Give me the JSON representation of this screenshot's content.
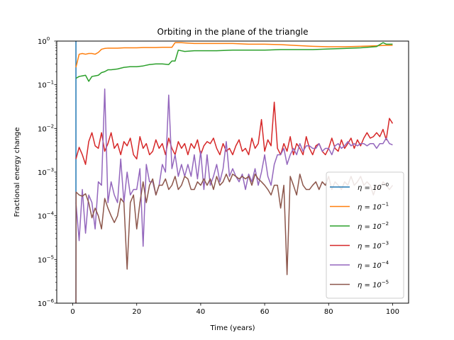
{
  "chart_data": {
    "type": "line",
    "title": "Orbiting in the plane of the triangle",
    "xlabel": "Time (years)",
    "ylabel": "Fractional energy change",
    "xlim": [
      -5,
      105
    ],
    "ylim": [
      1e-06,
      1
    ],
    "yscale": "log",
    "grid": false,
    "legend_position": "lower-right",
    "x_ticks": [
      0,
      20,
      40,
      60,
      80,
      100
    ],
    "x_tick_labels": [
      "0",
      "20",
      "40",
      "60",
      "80",
      "100"
    ],
    "y_ticks": [
      1e-06,
      1e-05,
      0.0001,
      0.001,
      0.01,
      0.1,
      1
    ],
    "y_tick_bases": [
      "10",
      "10",
      "10",
      "10",
      "10",
      "10",
      "10"
    ],
    "y_tick_exps": [
      "−6",
      "−5",
      "−4",
      "−3",
      "−2",
      "−1",
      "0"
    ],
    "series": [
      {
        "name": "η = 10^−0",
        "name_base": "η = 10",
        "name_exp": "−0",
        "color": "#1f77b4",
        "x": [
          1,
          1
        ],
        "y": [
          1e-06,
          1
        ]
      },
      {
        "name": "η = 10^−1",
        "name_base": "η = 10",
        "name_exp": "−1",
        "color": "#ff7f0e",
        "x": [
          1,
          2,
          3,
          4,
          5,
          6,
          7,
          8,
          9,
          10,
          11,
          12,
          14,
          16,
          18,
          20,
          22,
          24,
          26,
          28,
          30,
          31,
          32,
          34,
          36,
          38,
          40,
          45,
          50,
          55,
          60,
          65,
          70,
          75,
          80,
          85,
          90,
          95,
          98,
          100
        ],
        "y": [
          0.25,
          0.5,
          0.52,
          0.5,
          0.52,
          0.52,
          0.5,
          0.55,
          0.65,
          0.68,
          0.69,
          0.69,
          0.69,
          0.7,
          0.7,
          0.7,
          0.71,
          0.71,
          0.71,
          0.72,
          0.72,
          0.72,
          0.92,
          0.92,
          0.9,
          0.88,
          0.88,
          0.88,
          0.88,
          0.85,
          0.85,
          0.83,
          0.79,
          0.76,
          0.74,
          0.74,
          0.76,
          0.78,
          0.8,
          0.8
        ]
      },
      {
        "name": "η = 10^−2",
        "name_base": "η = 10",
        "name_exp": "−2",
        "color": "#2ca02c",
        "x": [
          1,
          2,
          3,
          4,
          5,
          6,
          7,
          8,
          9,
          10,
          11,
          12,
          14,
          16,
          18,
          20,
          22,
          24,
          26,
          28,
          30,
          31,
          32,
          33,
          34,
          35,
          38,
          40,
          45,
          50,
          55,
          60,
          65,
          70,
          75,
          80,
          85,
          90,
          95,
          97,
          98,
          100
        ],
        "y": [
          0.14,
          0.155,
          0.16,
          0.165,
          0.12,
          0.155,
          0.16,
          0.165,
          0.19,
          0.2,
          0.22,
          0.22,
          0.23,
          0.25,
          0.26,
          0.26,
          0.27,
          0.29,
          0.3,
          0.3,
          0.29,
          0.35,
          0.35,
          0.62,
          0.6,
          0.58,
          0.6,
          0.6,
          0.6,
          0.62,
          0.62,
          0.62,
          0.64,
          0.64,
          0.64,
          0.66,
          0.68,
          0.7,
          0.75,
          0.92,
          0.85,
          0.85
        ]
      },
      {
        "name": "η = 10^−3",
        "name_base": "η = 10",
        "name_exp": "−3",
        "color": "#d62728",
        "x": [
          1,
          2,
          3,
          4,
          5,
          6,
          7,
          8,
          9,
          10,
          11,
          12,
          13,
          14,
          15,
          16,
          17,
          18,
          19,
          20,
          21,
          22,
          23,
          24,
          25,
          26,
          27,
          28,
          29,
          30,
          31,
          32,
          33,
          34,
          35,
          36,
          37,
          38,
          39,
          40,
          41,
          42,
          43,
          44,
          45,
          46,
          47,
          48,
          49,
          50,
          51,
          52,
          53,
          54,
          55,
          56,
          57,
          58,
          59,
          60,
          61,
          62,
          63,
          64,
          65,
          66,
          67,
          68,
          69,
          70,
          71,
          72,
          73,
          74,
          75,
          76,
          77,
          78,
          79,
          80,
          81,
          82,
          83,
          84,
          85,
          86,
          87,
          88,
          89,
          90,
          91,
          92,
          93,
          94,
          95,
          96,
          97,
          98,
          99,
          100
        ],
        "y": [
          0.002,
          0.0037,
          0.0025,
          0.0015,
          0.005,
          0.008,
          0.004,
          0.0035,
          0.008,
          0.003,
          0.0045,
          0.008,
          0.0035,
          0.0045,
          0.0025,
          0.005,
          0.004,
          0.006,
          0.0025,
          0.002,
          0.0065,
          0.0035,
          0.0045,
          0.0025,
          0.003,
          0.0055,
          0.0035,
          0.0045,
          0.0025,
          0.006,
          0.0035,
          0.0025,
          0.005,
          0.0035,
          0.0045,
          0.0025,
          0.0045,
          0.0035,
          0.0055,
          0.0025,
          0.004,
          0.005,
          0.0045,
          0.006,
          0.0035,
          0.0025,
          0.0045,
          0.003,
          0.0035,
          0.0025,
          0.004,
          0.0055,
          0.003,
          0.0035,
          0.0025,
          0.006,
          0.0035,
          0.0045,
          0.016,
          0.003,
          0.0055,
          0.004,
          0.04,
          0.0035,
          0.0025,
          0.0045,
          0.003,
          0.0065,
          0.0025,
          0.0045,
          0.0035,
          0.0025,
          0.0065,
          0.0035,
          0.0025,
          0.004,
          0.0045,
          0.003,
          0.0025,
          0.0035,
          0.006,
          0.0035,
          0.003,
          0.0055,
          0.0035,
          0.0045,
          0.006,
          0.0035,
          0.0055,
          0.004,
          0.006,
          0.008,
          0.006,
          0.0065,
          0.008,
          0.0065,
          0.0095,
          0.0055,
          0.017,
          0.013
        ]
      },
      {
        "name": "η = 10^−4",
        "name_base": "η = 10",
        "name_exp": "−4",
        "color": "#9467bd",
        "x": [
          1,
          2,
          3,
          4,
          5,
          6,
          7,
          8,
          9,
          10,
          11,
          12,
          13,
          14,
          15,
          16,
          17,
          18,
          19,
          20,
          21,
          22,
          23,
          24,
          25,
          26,
          27,
          28,
          29,
          30,
          31,
          32,
          33,
          34,
          35,
          36,
          37,
          38,
          39,
          40,
          41,
          42,
          43,
          44,
          45,
          46,
          47,
          48,
          49,
          50,
          51,
          52,
          53,
          54,
          55,
          56,
          57,
          58,
          59,
          60,
          61,
          62,
          63,
          64,
          65,
          66,
          67,
          68,
          69,
          70,
          71,
          72,
          73,
          74,
          75,
          76,
          77,
          78,
          79,
          80,
          81,
          82,
          83,
          84,
          85,
          86,
          87,
          88,
          89,
          90,
          91,
          92,
          93,
          94,
          95,
          96,
          97,
          98,
          99,
          100
        ],
        "y": [
          0.0002,
          2.7e-05,
          0.0004,
          4e-05,
          0.0003,
          0.0002,
          5e-05,
          0.0006,
          0.0005,
          0.08,
          0.0002,
          0.0006,
          0.0003,
          0.0002,
          0.002,
          0.0002,
          0.001,
          0.0003,
          0.0004,
          0.0004,
          0.0012,
          2e-05,
          0.0015,
          0.0006,
          0.0006,
          0.0003,
          0.0005,
          0.0015,
          0.001,
          0.058,
          0.0012,
          0.0025,
          0.0008,
          0.0015,
          0.0008,
          0.0015,
          0.0008,
          0.0025,
          0.0007,
          0.003,
          0.0004,
          0.0025,
          0.0005,
          0.0008,
          0.0015,
          0.0006,
          0.0012,
          0.005,
          0.0008,
          0.0012,
          0.0008,
          0.0006,
          0.0009,
          0.0004,
          0.0009,
          0.0006,
          0.0012,
          0.0005,
          0.001,
          0.0025,
          0.0008,
          0.0005,
          0.0015,
          0.0025,
          0.0025,
          0.0035,
          0.0015,
          0.0025,
          0.0035,
          0.0025,
          0.0045,
          0.003,
          0.004,
          0.004,
          0.0035,
          0.0035,
          0.0045,
          0.003,
          0.0035,
          0.0035,
          0.0025,
          0.004,
          0.0045,
          0.0035,
          0.004,
          0.005,
          0.004,
          0.0045,
          0.004,
          0.0045,
          0.0045,
          0.004,
          0.0045,
          0.0045,
          0.0035,
          0.0045,
          0.0045,
          0.006,
          0.0045,
          0.0042
        ]
      },
      {
        "name": "η = 10^−5",
        "name_base": "η = 10",
        "name_exp": "−5",
        "color": "#8c564b",
        "x": [
          1,
          1.05,
          2,
          3,
          4,
          5,
          6,
          7,
          8,
          9,
          10,
          11,
          12,
          13,
          14,
          15,
          16,
          17,
          18,
          19,
          20,
          21,
          22,
          23,
          24,
          25,
          26,
          27,
          28,
          29,
          30,
          31,
          32,
          33,
          34,
          35,
          36,
          37,
          38,
          39,
          40,
          41,
          42,
          43,
          44,
          45,
          46,
          47,
          48,
          49,
          50,
          51,
          52,
          53,
          54,
          55,
          56,
          57,
          58,
          59,
          60,
          61,
          62,
          63,
          64,
          65,
          66,
          67,
          68,
          69,
          70,
          71,
          72,
          73,
          74,
          75,
          76,
          77,
          78,
          79,
          80,
          81,
          82,
          83,
          84,
          85,
          86,
          87,
          88,
          89,
          90,
          91,
          92,
          93,
          94,
          95,
          96,
          97,
          98,
          99,
          100
        ],
        "y": [
          1e-06,
          0.00035,
          0.0003,
          0.00028,
          0.00032,
          0.0002,
          9e-05,
          0.00015,
          0.0001,
          5e-05,
          0.00025,
          0.00015,
          0.0001,
          7e-05,
          0.0001,
          0.00025,
          0.0002,
          6e-06,
          0.0002,
          0.0003,
          5e-05,
          0.0002,
          0.0006,
          0.0002,
          0.0005,
          0.0007,
          0.0003,
          0.0005,
          0.0005,
          0.0007,
          0.0004,
          0.0005,
          0.0008,
          0.0004,
          0.0005,
          0.0008,
          0.0007,
          0.0004,
          0.0004,
          0.0006,
          0.0005,
          0.0007,
          0.0005,
          0.0007,
          0.0004,
          0.0008,
          0.0005,
          0.0006,
          0.0009,
          0.0006,
          0.0009,
          0.0008,
          0.0007,
          0.0008,
          0.0007,
          0.0008,
          0.0005,
          0.0009,
          0.0007,
          0.0006,
          0.0005,
          0.0004,
          0.0003,
          0.0005,
          0.0005,
          0.00015,
          0.0005,
          4.5e-06,
          0.0008,
          0.0005,
          0.0003,
          0.0009,
          0.0005,
          0.0004,
          0.0004,
          0.0005,
          0.0006,
          0.0004,
          0.0006,
          0.0005,
          0.0008,
          0.0004,
          0.0006,
          0.0005,
          0.0004,
          0.0006,
          0.0005,
          0.0008,
          0.0005,
          0.0006,
          0.0008,
          0.0005,
          0.0006,
          0.0005,
          0.0003,
          0.0005,
          0.0004,
          0.0006,
          0.0005,
          0.0004,
          0.0005
        ]
      }
    ]
  }
}
